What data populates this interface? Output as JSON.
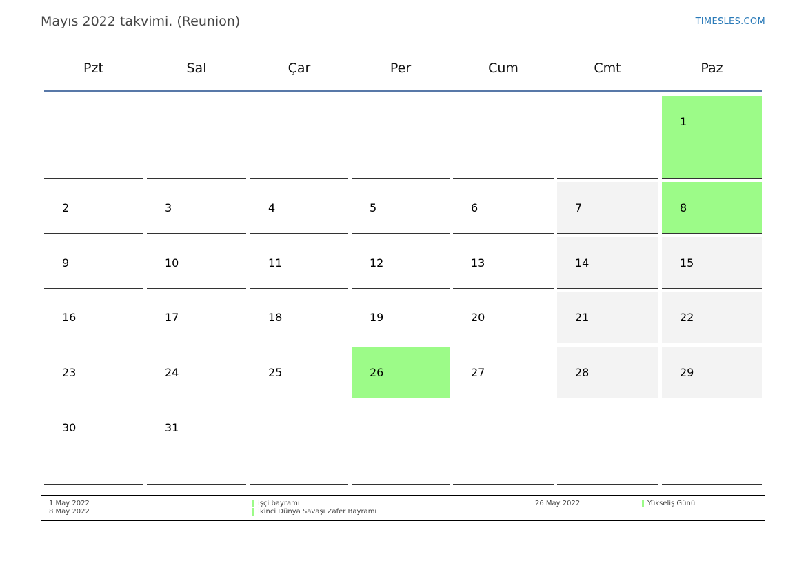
{
  "header": {
    "title": "Mayıs 2022 takvimi. (Reunion)",
    "site": "TIMESLES.COM"
  },
  "weekdays": [
    "Pzt",
    "Sal",
    "Çar",
    "Per",
    "Cum",
    "Cmt",
    "Paz"
  ],
  "weeks": [
    [
      null,
      null,
      null,
      null,
      null,
      null,
      {
        "day": "1",
        "type": "holiday"
      }
    ],
    [
      {
        "day": "2"
      },
      {
        "day": "3"
      },
      {
        "day": "4"
      },
      {
        "day": "5"
      },
      {
        "day": "6"
      },
      {
        "day": "7",
        "type": "weekend"
      },
      {
        "day": "8",
        "type": "holiday"
      }
    ],
    [
      {
        "day": "9"
      },
      {
        "day": "10"
      },
      {
        "day": "11"
      },
      {
        "day": "12"
      },
      {
        "day": "13"
      },
      {
        "day": "14",
        "type": "weekend"
      },
      {
        "day": "15",
        "type": "weekend"
      }
    ],
    [
      {
        "day": "16"
      },
      {
        "day": "17"
      },
      {
        "day": "18"
      },
      {
        "day": "19"
      },
      {
        "day": "20"
      },
      {
        "day": "21",
        "type": "weekend"
      },
      {
        "day": "22",
        "type": "weekend"
      }
    ],
    [
      {
        "day": "23"
      },
      {
        "day": "24"
      },
      {
        "day": "25"
      },
      {
        "day": "26",
        "type": "holiday"
      },
      {
        "day": "27"
      },
      {
        "day": "28",
        "type": "weekend"
      },
      {
        "day": "29",
        "type": "weekend"
      }
    ],
    [
      {
        "day": "30"
      },
      {
        "day": "31"
      },
      null,
      null,
      null,
      null,
      null
    ]
  ],
  "colors": {
    "holiday": "#9cfb88",
    "weekend": "#f3f3f3",
    "header_line": "#5878a8",
    "link": "#2a7ab8"
  },
  "legend": {
    "dates": [
      "1 May 2022",
      "8 May 2022"
    ],
    "names": [
      "işçi bayramı",
      "İkinci Dünya Savaşı Zafer Bayramı"
    ],
    "date_right": "26 May 2022",
    "name_right": "Yükseliş Günü"
  }
}
